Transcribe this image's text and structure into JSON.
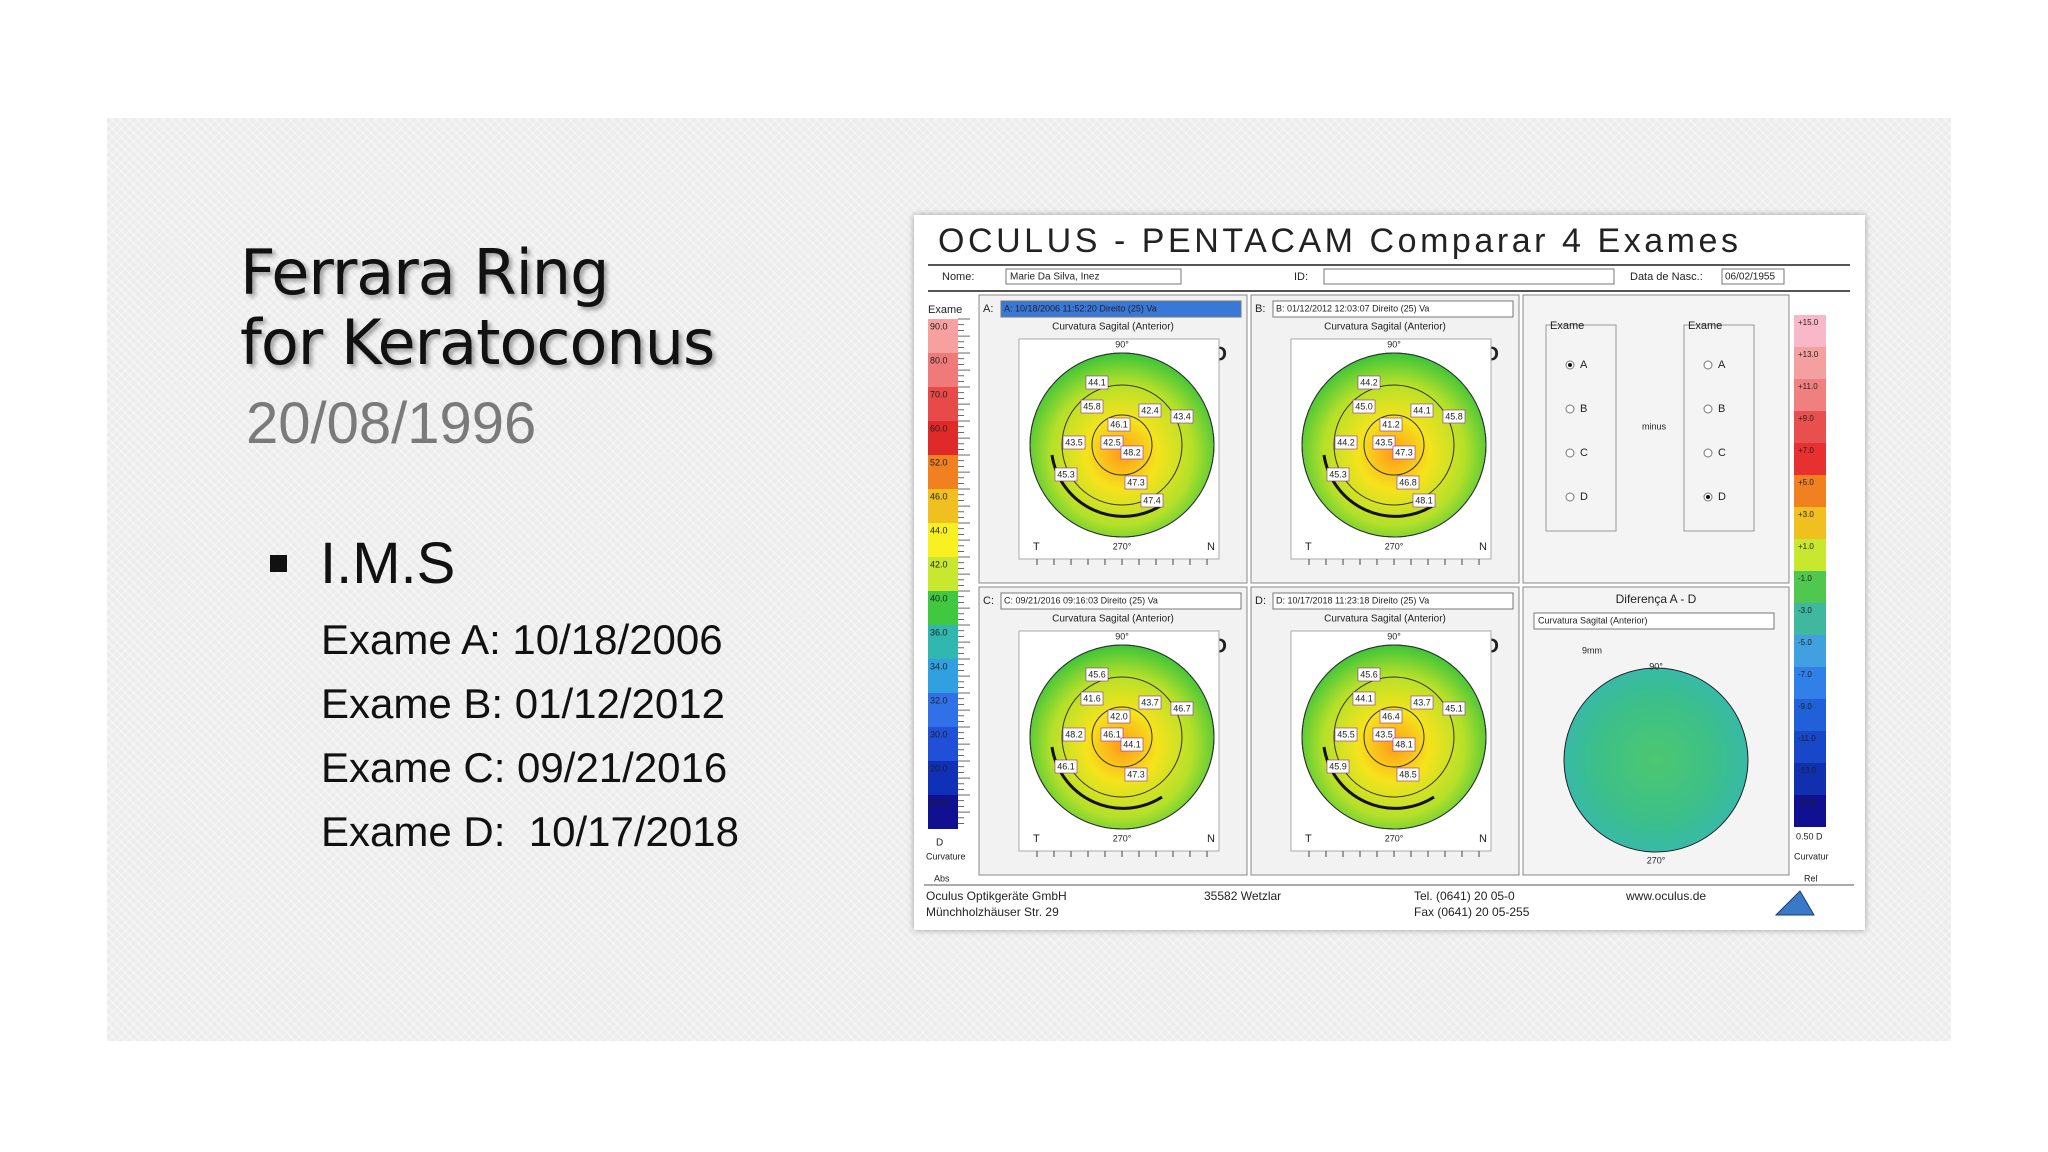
{
  "slide": {
    "title_lines": [
      "Ferrara Ring",
      "for Keratoconus"
    ],
    "date": "20/08/1996",
    "bullet": "I.M.S",
    "exams": [
      "Exame A: 10/18/2006",
      "Exame B: 01/12/2012",
      "Exame C: 09/21/2016",
      "Exame D:  10/17/2018"
    ]
  },
  "screenshot": {
    "title": "OCULUS - PENTACAM  Comparar 4 Exames",
    "name_label": "Nome:",
    "name": "Marie Da Silva, Inez",
    "id_label": "ID:",
    "dob_label": "Data de Nasc.:",
    "dob": "06/02/1955",
    "scale_header": "Exame",
    "scale_values": [
      "90.0",
      "80.0",
      "70.0",
      "60.0",
      "52.0",
      "46.0",
      "44.0",
      "42.0",
      "40.0",
      "36.0",
      "34.0",
      "32.0",
      "30.0",
      "20.0",
      "10.0"
    ],
    "scale_footer": [
      "D",
      "Curvature",
      "Abs"
    ],
    "map_axes": {
      "top": "90°",
      "bottom": "270°",
      "left": "T",
      "right": "N",
      "zoom": "9mm"
    },
    "panels": [
      {
        "letter": "A:",
        "select": "A: 10/18/2006 11:52:20 Direito (25) Va",
        "map": "Curvatura Sagital (Anterior)",
        "eye": "OD",
        "readings": [
          "44.1",
          "45.8",
          "42.4",
          "43.4",
          "46.1",
          "42.5",
          "48.2",
          "43.5",
          "45.3",
          "47.3",
          "47.4"
        ]
      },
      {
        "letter": "B:",
        "select": "B: 01/12/2012 12:03:07 Direito (25) Va",
        "map": "Curvatura Sagital (Anterior)",
        "eye": "OD",
        "readings": [
          "44.2",
          "45.0",
          "44.1",
          "45.8",
          "41.2",
          "43.5",
          "47.3",
          "44.2",
          "45.3",
          "46.8",
          "48.1"
        ]
      },
      {
        "letter": "C:",
        "select": "C: 09/21/2016 09:16:03 Direito (25) Va",
        "map": "Curvatura Sagital (Anterior)",
        "eye": "OD",
        "readings": [
          "45.6",
          "41.6",
          "43.7",
          "46.7",
          "42.0",
          "46.1",
          "44.1",
          "48.2",
          "46.1",
          "47.3"
        ]
      },
      {
        "letter": "D:",
        "select": "D: 10/17/2018 11:23:18 Direito (25) Va",
        "map": "Curvatura Sagital (Anterior)",
        "eye": "OD",
        "readings": [
          "45.6",
          "44.1",
          "43.7",
          "45.1",
          "46.4",
          "43.5",
          "48.1",
          "45.5",
          "45.9",
          "48.5"
        ]
      }
    ],
    "compare": {
      "left_label": "Exame",
      "right_label": "Exame",
      "options": [
        "A",
        "B",
        "C",
        "D"
      ],
      "minus": "minus"
    },
    "diff": {
      "title": "Diferença A - D",
      "select": "Curvatura Sagital (Anterior)"
    },
    "right_scale": [
      "+15.0",
      "+13.0",
      "+11.0",
      "+9.0",
      "+7.0",
      "+5.0",
      "+3.0",
      "+1.0",
      "-1.0",
      "-3.0",
      "-5.0",
      "-7.0",
      "-9.0",
      "-11.0",
      "-13.0",
      "-15.0"
    ],
    "right_footer": [
      "0.50 D",
      "Curvatur",
      "Rel"
    ],
    "footer": {
      "company": "Oculus Optikgeräte GmbH",
      "street": "Münchholzhäuser Str. 29",
      "city": "35582 Wetzlar",
      "tel": "Tel. (0641) 20 05-0",
      "fax": "Fax (0641) 20 05-255",
      "web": "www.oculus.de"
    }
  }
}
